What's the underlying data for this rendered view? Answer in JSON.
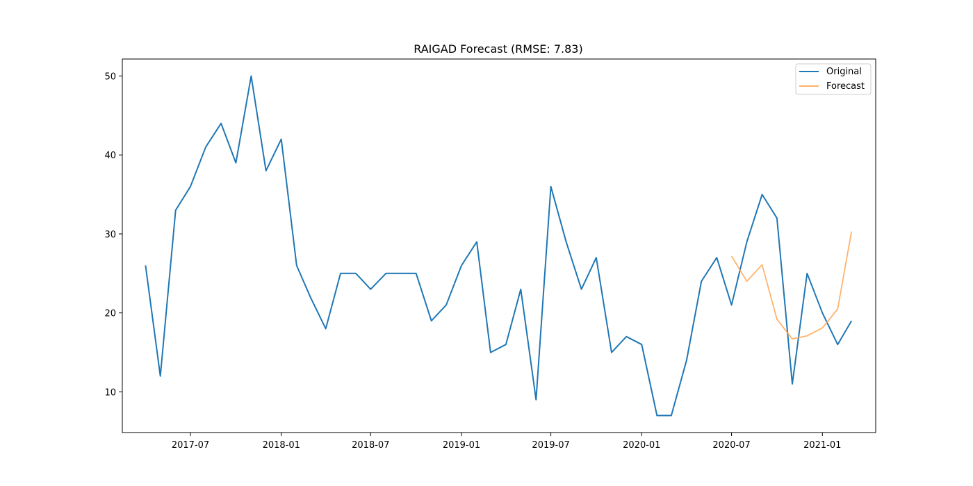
{
  "chart_data": {
    "type": "line",
    "title": "RAIGAD Forecast (RMSE: 7.83)",
    "xlabel": "",
    "ylabel": "",
    "x_ticks": [
      "2017-07",
      "2018-01",
      "2018-07",
      "2019-01",
      "2019-07",
      "2020-01",
      "2020-07",
      "2021-01"
    ],
    "y_ticks": [
      10,
      20,
      30,
      40,
      50
    ],
    "xlim": [
      "2017-02-13",
      "2021-04-19"
    ],
    "ylim": [
      4.85,
      52.15
    ],
    "grid": false,
    "legend_position": "top-right",
    "series": [
      {
        "name": "Original",
        "color": "#1f77b4",
        "x": [
          "2017-04",
          "2017-05",
          "2017-06",
          "2017-07",
          "2017-08",
          "2017-09",
          "2017-10",
          "2017-11",
          "2017-12",
          "2018-01",
          "2018-02",
          "2018-03",
          "2018-04",
          "2018-05",
          "2018-06",
          "2018-07",
          "2018-08",
          "2018-09",
          "2018-10",
          "2018-11",
          "2018-12",
          "2019-01",
          "2019-02",
          "2019-03",
          "2019-04",
          "2019-05",
          "2019-06",
          "2019-07",
          "2019-08",
          "2019-09",
          "2019-10",
          "2019-11",
          "2019-12",
          "2020-01",
          "2020-02",
          "2020-03",
          "2020-04",
          "2020-05",
          "2020-06",
          "2020-07",
          "2020-08",
          "2020-09",
          "2020-10",
          "2020-11",
          "2020-12",
          "2021-01",
          "2021-02",
          "2021-03"
        ],
        "values": [
          26,
          12,
          33,
          36,
          41,
          44,
          39,
          50,
          38,
          42,
          26,
          22,
          18,
          25,
          25,
          23,
          25,
          25,
          25,
          19,
          21,
          26,
          29,
          15,
          16,
          23,
          9,
          36,
          29,
          23,
          27,
          15,
          17,
          16,
          7,
          7,
          14,
          24,
          27,
          21,
          29,
          35,
          32,
          11,
          25,
          20,
          16,
          19
        ]
      },
      {
        "name": "Forecast",
        "color": "#ffa552",
        "x": [
          "2020-07",
          "2020-08",
          "2020-09",
          "2020-10",
          "2020-11",
          "2020-12",
          "2021-01",
          "2021-02",
          "2021-03"
        ],
        "values": [
          27.2,
          24.0,
          26.1,
          19.2,
          16.7,
          17.1,
          18.1,
          20.5,
          30.3
        ]
      }
    ]
  }
}
